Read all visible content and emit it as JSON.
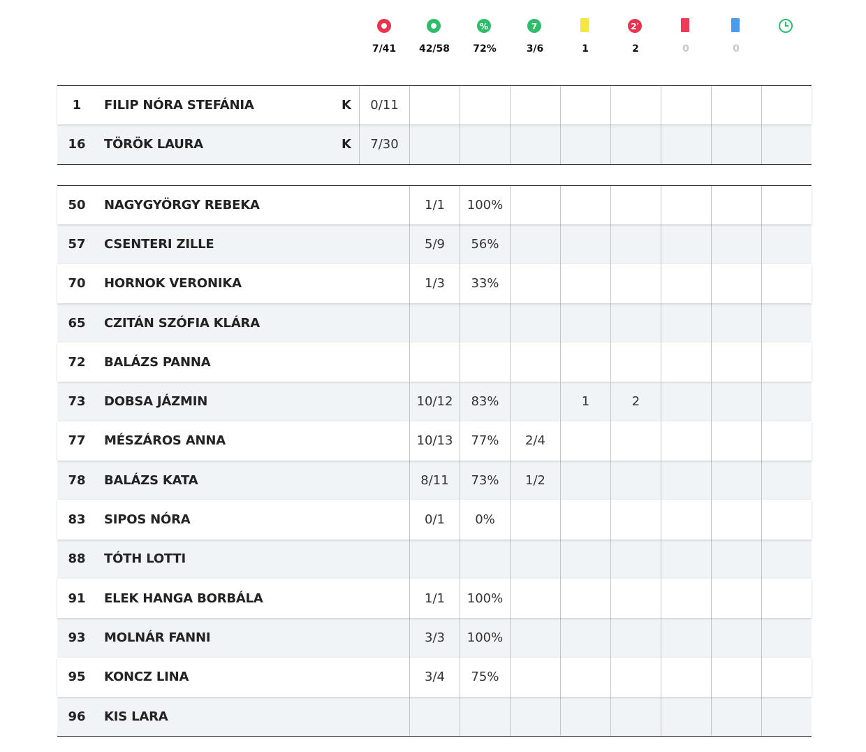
{
  "header": {
    "columns": [
      {
        "total": "7/41"
      },
      {
        "total": "42/58"
      },
      {
        "icon": "%",
        "total": "72%"
      },
      {
        "icon": "7",
        "total": "3/6"
      },
      {
        "total": "1"
      },
      {
        "icon": "2′",
        "total": "2"
      },
      {
        "total": "0"
      },
      {
        "total": "0"
      }
    ]
  },
  "goalkeepers": {
    "rows": [
      {
        "number": 1,
        "name": "FILIP NÓRA STEFÁNIA",
        "role": "K",
        "saves": "0/11"
      },
      {
        "number": 16,
        "name": "TÖRÖK LAURA",
        "role": "K",
        "saves": "7/30"
      }
    ]
  },
  "players": {
    "rows": [
      {
        "number": 50,
        "name": "NAGYGYÖRGY REBEKA",
        "cells": [
          "1/1",
          "100%",
          null,
          null,
          null,
          null,
          null,
          null
        ]
      },
      {
        "number": 57,
        "name": "CSENTERI ZILLE",
        "cells": [
          "5/9",
          "56%",
          null,
          null,
          null,
          null,
          null,
          null
        ]
      },
      {
        "number": 70,
        "name": "HORNOK VERONIKA",
        "cells": [
          "1/3",
          "33%",
          null,
          null,
          null,
          null,
          null,
          null
        ]
      },
      {
        "number": 65,
        "name": "CZITÁN SZÓFIA KLÁRA",
        "cells": [
          null,
          null,
          null,
          null,
          null,
          null,
          null,
          null
        ]
      },
      {
        "number": 72,
        "name": "BALÁZS PANNA",
        "cells": [
          null,
          null,
          null,
          null,
          null,
          null,
          null,
          null
        ]
      },
      {
        "number": 73,
        "name": "DOBSA JÁZMIN",
        "cells": [
          "10/12",
          "83%",
          null,
          "1",
          "2",
          null,
          null,
          null
        ]
      },
      {
        "number": 77,
        "name": "MÉSZÁROS ANNA",
        "cells": [
          "10/13",
          "77%",
          "2/4",
          null,
          null,
          null,
          null,
          null
        ]
      },
      {
        "number": 78,
        "name": "BALÁZS KATA",
        "cells": [
          "8/11",
          "73%",
          "1/2",
          null,
          null,
          null,
          null,
          null
        ]
      },
      {
        "number": 83,
        "name": "SIPOS NÓRA",
        "cells": [
          "0/1",
          "0%",
          null,
          null,
          null,
          null,
          null,
          null
        ]
      },
      {
        "number": 88,
        "name": "TÓTH LOTTI",
        "cells": [
          null,
          null,
          null,
          null,
          null,
          null,
          null,
          null
        ]
      },
      {
        "number": 91,
        "name": "ELEK HANGA BORBÁLA",
        "cells": [
          "1/1",
          "100%",
          null,
          null,
          null,
          null,
          null,
          null
        ]
      },
      {
        "number": 93,
        "name": "MOLNÁR FANNI",
        "cells": [
          "3/3",
          "100%",
          null,
          null,
          null,
          null,
          null,
          null
        ]
      },
      {
        "number": 95,
        "name": "KONCZ LINA",
        "cells": [
          "3/4",
          "75%",
          null,
          null,
          null,
          null,
          null,
          null
        ]
      },
      {
        "number": 96,
        "name": "KIS LARA",
        "cells": [
          null,
          null,
          null,
          null,
          null,
          null,
          null,
          null
        ]
      }
    ]
  }
}
